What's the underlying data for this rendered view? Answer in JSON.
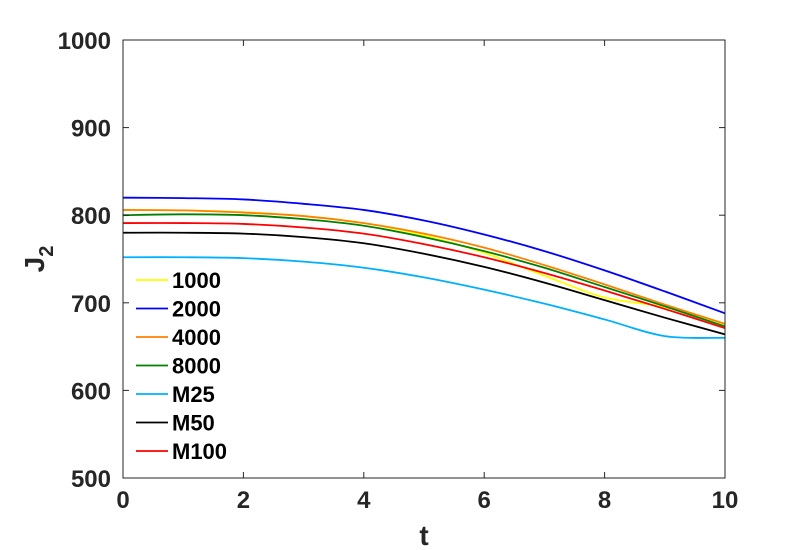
{
  "chart_data": {
    "type": "line",
    "title": "",
    "xlabel": "t",
    "ylabel": "J",
    "ylabel_subscript": "2",
    "xlim": [
      0,
      10
    ],
    "ylim": [
      500,
      1000
    ],
    "xticks": [
      0,
      2,
      4,
      6,
      8,
      10
    ],
    "yticks": [
      500,
      600,
      700,
      800,
      900,
      1000
    ],
    "grid": false,
    "legend_position": "bottom-left",
    "x": [
      0,
      1,
      2,
      3,
      4,
      5,
      6,
      7,
      8,
      9,
      10
    ],
    "series": [
      {
        "name": "1000",
        "color": "#ffff00",
        "values": [
          806,
          805.5,
          803.5,
          799,
          791,
          777,
          757,
          731,
          706,
          695,
          675
        ]
      },
      {
        "name": "2000",
        "color": "#0000ff",
        "values": [
          820,
          819.5,
          818,
          813,
          806,
          794,
          778,
          759,
          737,
          713,
          688
        ]
      },
      {
        "name": "4000",
        "color": "#ff8000",
        "values": [
          806,
          805.5,
          803,
          799,
          791,
          779,
          763,
          743,
          721,
          698,
          676
        ]
      },
      {
        "name": "8000",
        "color": "#008000",
        "values": [
          800,
          801,
          800,
          795.5,
          788,
          775,
          759,
          740,
          718,
          696,
          673
        ]
      },
      {
        "name": "M25",
        "color": "#00b0ff",
        "values": [
          752,
          752,
          751,
          747,
          740,
          729,
          715,
          699,
          681,
          662,
          660
        ]
      },
      {
        "name": "M50",
        "color": "#000000",
        "values": [
          780,
          780,
          779,
          775,
          768,
          756,
          741,
          723,
          703,
          683,
          664
        ]
      },
      {
        "name": "M100",
        "color": "#ff0000",
        "values": [
          791,
          791,
          790,
          786,
          779,
          767,
          752,
          734,
          714,
          693,
          671
        ]
      }
    ]
  }
}
